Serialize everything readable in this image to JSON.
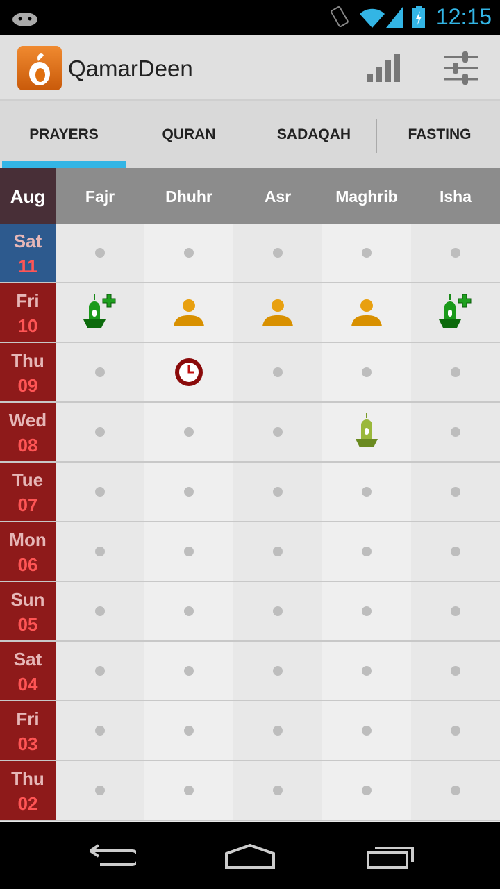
{
  "status_bar": {
    "time": "12:15",
    "icons": [
      "android-icon",
      "vibrate-icon",
      "wifi-icon",
      "signal-icon",
      "battery-charging-icon"
    ]
  },
  "app": {
    "title": "QamarDeen",
    "actions": [
      "stats-icon",
      "settings-sliders-icon"
    ]
  },
  "tabs": [
    {
      "label": "PRAYERS",
      "selected": true
    },
    {
      "label": "QURAN"
    },
    {
      "label": "SADAQAH"
    },
    {
      "label": "FASTING"
    }
  ],
  "header": {
    "month": "Aug",
    "columns": [
      "Fajr",
      "Dhuhr",
      "Asr",
      "Maghrib",
      "Isha"
    ]
  },
  "rows": [
    {
      "dow": "Sat",
      "dom": "11",
      "partial": true,
      "cells": [
        "none",
        "none",
        "none",
        "none",
        "none"
      ]
    },
    {
      "dow": "Fri",
      "dom": "10",
      "cells": [
        "mosque-jamaah",
        "alone",
        "alone",
        "alone",
        "mosque-jamaah"
      ]
    },
    {
      "dow": "Thu",
      "dom": "09",
      "cells": [
        "none",
        "late",
        "none",
        "none",
        "none"
      ]
    },
    {
      "dow": "Wed",
      "dom": "08",
      "cells": [
        "none",
        "none",
        "none",
        "mosque",
        "none"
      ]
    },
    {
      "dow": "Tue",
      "dom": "07",
      "cells": [
        "none",
        "none",
        "none",
        "none",
        "none"
      ]
    },
    {
      "dow": "Mon",
      "dom": "06",
      "cells": [
        "none",
        "none",
        "none",
        "none",
        "none"
      ]
    },
    {
      "dow": "Sun",
      "dom": "05",
      "cells": [
        "none",
        "none",
        "none",
        "none",
        "none"
      ]
    },
    {
      "dow": "Sat",
      "dom": "04",
      "cells": [
        "none",
        "none",
        "none",
        "none",
        "none"
      ]
    },
    {
      "dow": "Fri",
      "dom": "03",
      "cells": [
        "none",
        "none",
        "none",
        "none",
        "none"
      ]
    },
    {
      "dow": "Thu",
      "dom": "02",
      "cells": [
        "none",
        "none",
        "none",
        "none",
        "none"
      ]
    }
  ],
  "colors": {
    "accent": "#33b5e5",
    "date_bg": "#8e1a1a",
    "today_bg": "#2d5a8e"
  },
  "nav": [
    "back-icon",
    "home-icon",
    "recent-apps-icon"
  ]
}
